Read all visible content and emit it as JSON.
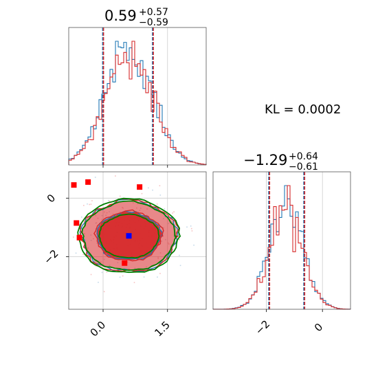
{
  "chart_data": [
    {
      "type": "histogram",
      "panel": "marginal-param-1",
      "title_main": "0.59",
      "title_plus": "+0.57",
      "title_minus": "−0.59",
      "median": 0.59,
      "interval": [
        0.0,
        1.16
      ],
      "xlim": [
        -0.8,
        2.4
      ],
      "grid_x": [
        0.0,
        1.5
      ],
      "center": 0.6,
      "sigma": 0.55,
      "series": [
        {
          "name": "",
          "color": "#1f77b4"
        },
        {
          "name": "",
          "color": "#d62728"
        }
      ],
      "quantile_colors": [
        "#1f77b4",
        "#d62728"
      ]
    },
    {
      "type": "histogram",
      "panel": "marginal-param-2",
      "title_main": "−1.29",
      "title_plus": "+0.64",
      "title_minus": "−0.61",
      "median": -1.29,
      "interval": [
        -1.9,
        -0.65
      ],
      "xlim": [
        -3.9,
        1.0
      ],
      "grid_x": [
        -2,
        0
      ],
      "xticks": [
        "−2",
        "0"
      ],
      "center": -1.3,
      "sigma": 0.6,
      "series": [
        {
          "name": "",
          "color": "#1f77b4"
        },
        {
          "name": "",
          "color": "#d62728"
        }
      ],
      "quantile_colors": [
        "#1f77b4",
        "#d62728"
      ]
    },
    {
      "type": "scatter",
      "panel": "joint-2d",
      "xlim": [
        -0.8,
        2.4
      ],
      "ylim": [
        -3.8,
        0.9
      ],
      "xticks": [
        "0.0",
        "1.5"
      ],
      "xtick_values": [
        0.0,
        1.5
      ],
      "yticks": [
        "0",
        "−2"
      ],
      "ytick_values": [
        0,
        -2
      ],
      "true_point": {
        "x": 0.6,
        "y": -1.29,
        "color": "#0000ff"
      },
      "outlier_points": [
        {
          "x": -0.68,
          "y": 0.45
        },
        {
          "x": -0.35,
          "y": 0.55
        },
        {
          "x": 0.85,
          "y": 0.38
        },
        {
          "x": -0.62,
          "y": -0.85
        },
        {
          "x": -0.55,
          "y": -1.35
        },
        {
          "x": 0.5,
          "y": -2.22
        }
      ],
      "outlier_color": "#ff0000",
      "contour_colors": {
        "fill": "#d62728",
        "line_blue": "#1f77b4",
        "line_red": "#d62728",
        "line_green": "#008000"
      }
    }
  ],
  "annotation": {
    "kl_text": "KL = 0.0002"
  }
}
